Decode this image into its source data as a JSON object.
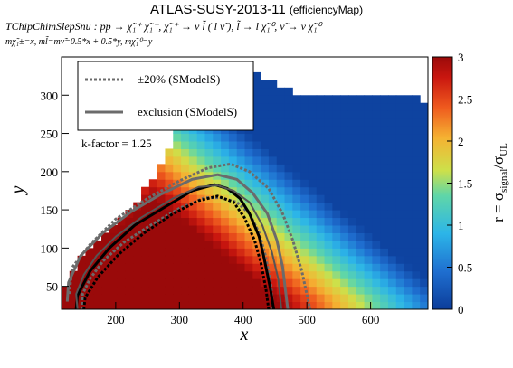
{
  "header": {
    "title": "ATLAS-SUSY-2013-11",
    "subtitle": "(efficiencyMap)",
    "process": "TChipChimSlepSnu : pp → χ̃₁⁺ χ̃₁⁻, χ̃₁⁺ → ν l̃ ( l ν̃ ), l̃ → l χ̃₁⁰, ν̃ → ν χ̃₁⁰",
    "mass_relation": "mχ̃₁±=x, ml̃=mν̃=0.5*x + 0.5*y, mχ̃₁⁰=y"
  },
  "chart_data": {
    "type": "heatmap",
    "xlabel": "x",
    "ylabel": "y",
    "zlabel": "r = σsignal/σUL",
    "xlim": [
      115,
      690
    ],
    "ylim": [
      20,
      350
    ],
    "zlim": [
      0,
      3
    ],
    "x_ticks": [
      "200",
      "300",
      "400",
      "500",
      "600"
    ],
    "y_ticks": [
      "50",
      "100",
      "150",
      "200",
      "250",
      "300"
    ],
    "z_ticks": [
      "0",
      "0.5",
      "1",
      "1.5",
      "2",
      "2.5",
      "3"
    ],
    "annotation": "k-factor = 1.25",
    "legend": {
      "position": "top-left",
      "entries": [
        {
          "label": "±20% (SModelS)",
          "style": "dotted",
          "color": "#6b6b6b"
        },
        {
          "label": "exclusion (SModelS)",
          "style": "solid",
          "color": "#6b6b6b"
        }
      ]
    },
    "contours": {
      "exclusion_smodels": [
        [
          140,
          20
        ],
        [
          138,
          40
        ],
        [
          150,
          65
        ],
        [
          170,
          90
        ],
        [
          200,
          115
        ],
        [
          240,
          140
        ],
        [
          290,
          165
        ],
        [
          330,
          180
        ],
        [
          360,
          182
        ],
        [
          385,
          175
        ],
        [
          410,
          160
        ],
        [
          430,
          130
        ],
        [
          445,
          95
        ],
        [
          455,
          60
        ],
        [
          460,
          20
        ]
      ],
      "smodels_plus20": [
        [
          130,
          20
        ],
        [
          127,
          42
        ],
        [
          140,
          70
        ],
        [
          165,
          100
        ],
        [
          200,
          128
        ],
        [
          245,
          155
        ],
        [
          290,
          178
        ],
        [
          335,
          196
        ],
        [
          370,
          200
        ],
        [
          400,
          192
        ],
        [
          430,
          170
        ],
        [
          450,
          135
        ],
        [
          460,
          100
        ],
        [
          468,
          60
        ],
        [
          475,
          20
        ]
      ],
      "smodels_minus20": [
        [
          148,
          20
        ],
        [
          148,
          40
        ],
        [
          160,
          60
        ],
        [
          180,
          83
        ],
        [
          212,
          107
        ],
        [
          255,
          130
        ],
        [
          300,
          152
        ],
        [
          340,
          166
        ],
        [
          365,
          166
        ],
        [
          390,
          160
        ],
        [
          410,
          145
        ],
        [
          425,
          120
        ],
        [
          435,
          90
        ],
        [
          443,
          55
        ],
        [
          447,
          20
        ]
      ],
      "outer_plus20": [
        [
          127,
          40
        ],
        [
          132,
          75
        ],
        [
          160,
          105
        ],
        [
          200,
          138
        ],
        [
          250,
          165
        ],
        [
          300,
          188
        ],
        [
          345,
          205
        ],
        [
          380,
          210
        ],
        [
          410,
          200
        ],
        [
          440,
          178
        ],
        [
          462,
          145
        ],
        [
          478,
          110
        ],
        [
          492,
          70
        ],
        [
          505,
          20
        ]
      ],
      "outer_solid": [
        [
          124,
          30
        ],
        [
          126,
          55
        ],
        [
          145,
          90
        ],
        [
          180,
          120
        ],
        [
          225,
          148
        ],
        [
          270,
          170
        ],
        [
          320,
          190
        ],
        [
          360,
          196
        ],
        [
          390,
          190
        ],
        [
          415,
          172
        ],
        [
          438,
          145
        ],
        [
          453,
          110
        ],
        [
          462,
          75
        ],
        [
          470,
          20
        ]
      ],
      "official_exclusion": [
        [
          138,
          20
        ],
        [
          140,
          38
        ],
        [
          160,
          70
        ],
        [
          190,
          100
        ],
        [
          230,
          130
        ],
        [
          280,
          155
        ],
        [
          320,
          175
        ],
        [
          355,
          183
        ],
        [
          375,
          178
        ],
        [
          395,
          165
        ],
        [
          410,
          145
        ],
        [
          425,
          115
        ],
        [
          432,
          90
        ],
        [
          442,
          50
        ],
        [
          448,
          20
        ]
      ],
      "official_pm": [
        [
          150,
          20
        ],
        [
          152,
          35
        ],
        [
          172,
          62
        ],
        [
          205,
          92
        ],
        [
          245,
          120
        ],
        [
          290,
          145
        ],
        [
          330,
          162
        ],
        [
          360,
          168
        ],
        [
          385,
          160
        ],
        [
          402,
          140
        ],
        [
          418,
          110
        ],
        [
          428,
          80
        ],
        [
          436,
          45
        ],
        [
          440,
          20
        ]
      ]
    }
  }
}
